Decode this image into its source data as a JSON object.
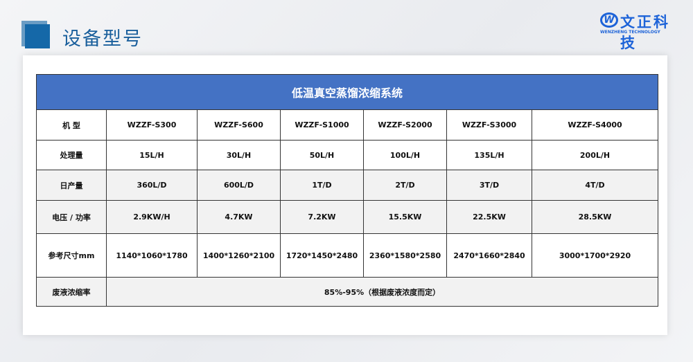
{
  "page": {
    "title": "设备型号"
  },
  "logo": {
    "mark": "W",
    "name_cn": "文正科技",
    "name_en": "WENZHENG TECHNOLOGY"
  },
  "table": {
    "title": "低温真空蒸馏浓缩系统",
    "rows": [
      {
        "label": "机 型",
        "values": [
          "WZZF-S300",
          "WZZF-S600",
          "WZZF-S1000",
          "WZZF-S2000",
          "WZZF-S3000",
          "WZZF-S4000"
        ]
      },
      {
        "label": "处理量",
        "values": [
          "15L/H",
          "30L/H",
          "50L/H",
          "100L/H",
          "135L/H",
          "200L/H"
        ]
      },
      {
        "label": "日产量",
        "values": [
          "360L/D",
          "600L/D",
          "1T/D",
          "2T/D",
          "3T/D",
          "4T/D"
        ]
      },
      {
        "label": "电压 / 功率",
        "values": [
          "2.9KW/H",
          "4.7KW",
          "7.2KW",
          "15.5KW",
          "22.5KW",
          "28.5KW"
        ]
      },
      {
        "label": "参考尺寸mm",
        "values": [
          "1140*1060*1780",
          "1400*1260*2100",
          "1720*1450*2480",
          "2360*1580*2580",
          "2470*1660*2840",
          "3000*1700*2920"
        ]
      }
    ],
    "concentration": {
      "label": "废液浓缩率",
      "value": "85%-95%（根据废液浓度而定）"
    }
  },
  "colors": {
    "header": "#4472c4",
    "title": "#1a5f9c",
    "logo": "#1d63d8",
    "alt_row": "#f2f2f2"
  }
}
